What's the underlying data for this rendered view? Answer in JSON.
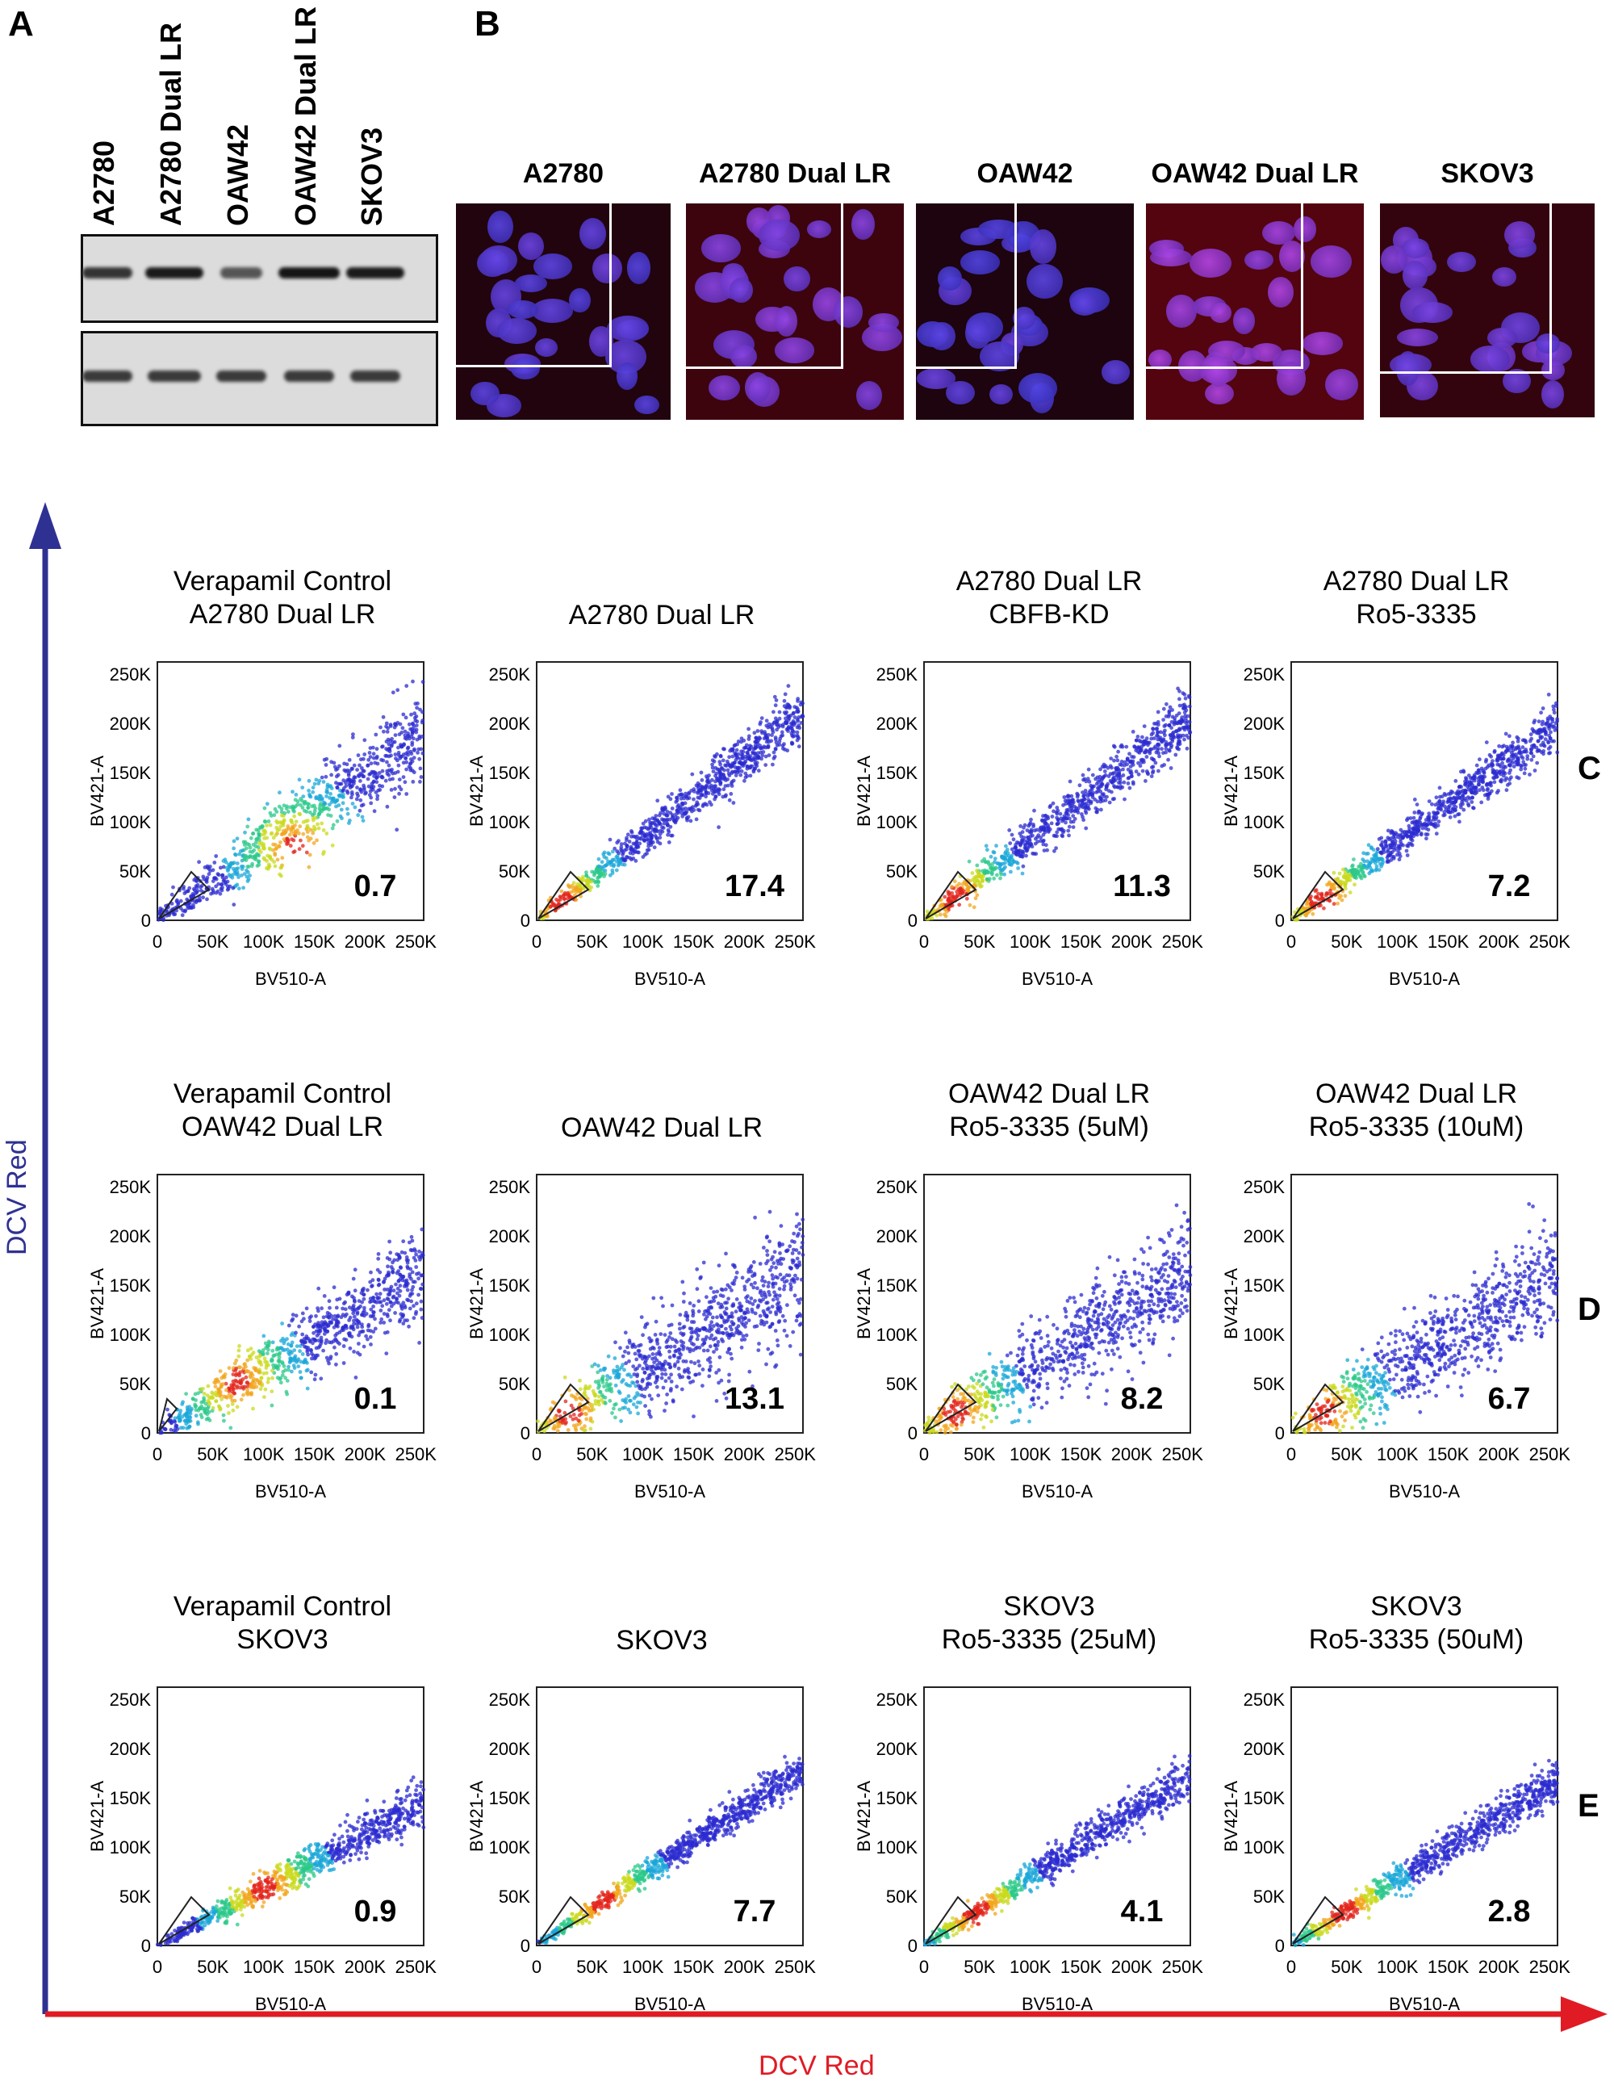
{
  "panel_a": {
    "letter": "A",
    "lanes": [
      "A2780",
      "A2780 Dual LR",
      "OAW42",
      "OAW42 Dual LR",
      "SKOV3"
    ]
  },
  "panel_b": {
    "letter": "B",
    "images": [
      "A2780",
      "A2780 Dual LR",
      "OAW42",
      "OAW42 Dual LR",
      "SKOV3"
    ]
  },
  "axes": {
    "y_label": "DCV Red",
    "x_label": "DCV Red",
    "y_color": "#2e3192",
    "x_color": "#e01b24"
  },
  "rows": [
    {
      "letter": "C",
      "plots": [
        {
          "title": [
            "Verapamil Control",
            "A2780 Dual LR"
          ],
          "value": "0.7"
        },
        {
          "title": [
            "A2780 Dual LR"
          ],
          "value": "17.4"
        },
        {
          "title": [
            "A2780 Dual LR",
            "CBFB-KD"
          ],
          "value": "11.3"
        },
        {
          "title": [
            "A2780 Dual LR",
            "Ro5-3335"
          ],
          "value": "7.2"
        }
      ]
    },
    {
      "letter": "D",
      "plots": [
        {
          "title": [
            "Verapamil Control",
            "OAW42 Dual LR"
          ],
          "value": "0.1"
        },
        {
          "title": [
            "OAW42 Dual LR"
          ],
          "value": "13.1"
        },
        {
          "title": [
            "OAW42 Dual LR",
            "Ro5-3335 (5uM)"
          ],
          "value": "8.2"
        },
        {
          "title": [
            "OAW42 Dual LR",
            "Ro5-3335 (10uM)"
          ],
          "value": "6.7"
        }
      ]
    },
    {
      "letter": "E",
      "plots": [
        {
          "title": [
            "Verapamil Control",
            "SKOV3"
          ],
          "value": "0.9"
        },
        {
          "title": [
            "SKOV3"
          ],
          "value": "7.7"
        },
        {
          "title": [
            "SKOV3",
            "Ro5-3335 (25uM)"
          ],
          "value": "4.1"
        },
        {
          "title": [
            "SKOV3",
            "Ro5-3335 (50uM)"
          ],
          "value": "2.8"
        }
      ]
    }
  ],
  "flow_axes": {
    "xlabel": "BV510-A",
    "ylabel": "BV421-A",
    "xticks": [
      "0",
      "50K",
      "100K",
      "150K",
      "200K",
      "250K"
    ],
    "yticks": [
      "0",
      "50K",
      "100K",
      "150K",
      "200K",
      "250K"
    ]
  },
  "chart_data": [
    {
      "type": "scatter",
      "title": "Verapamil Control A2780 Dual LR",
      "xlabel": "BV510-A",
      "ylabel": "BV421-A",
      "xlim": [
        0,
        262144
      ],
      "ylim": [
        0,
        262144
      ],
      "gate_percent": 0.7
    },
    {
      "type": "scatter",
      "title": "A2780 Dual LR",
      "xlabel": "BV510-A",
      "ylabel": "BV421-A",
      "xlim": [
        0,
        262144
      ],
      "ylim": [
        0,
        262144
      ],
      "gate_percent": 17.4
    },
    {
      "type": "scatter",
      "title": "A2780 Dual LR CBFB-KD",
      "xlabel": "BV510-A",
      "ylabel": "BV421-A",
      "xlim": [
        0,
        262144
      ],
      "ylim": [
        0,
        262144
      ],
      "gate_percent": 11.3
    },
    {
      "type": "scatter",
      "title": "A2780 Dual LR Ro5-3335",
      "xlabel": "BV510-A",
      "ylabel": "BV421-A",
      "xlim": [
        0,
        262144
      ],
      "ylim": [
        0,
        262144
      ],
      "gate_percent": 7.2
    },
    {
      "type": "scatter",
      "title": "Verapamil Control OAW42 Dual LR",
      "xlabel": "BV510-A",
      "ylabel": "BV421-A",
      "xlim": [
        0,
        262144
      ],
      "ylim": [
        0,
        262144
      ],
      "gate_percent": 0.1
    },
    {
      "type": "scatter",
      "title": "OAW42 Dual LR",
      "xlabel": "BV510-A",
      "ylabel": "BV421-A",
      "xlim": [
        0,
        262144
      ],
      "ylim": [
        0,
        262144
      ],
      "gate_percent": 13.1
    },
    {
      "type": "scatter",
      "title": "OAW42 Dual LR Ro5-3335 (5uM)",
      "xlabel": "BV510-A",
      "ylabel": "BV421-A",
      "xlim": [
        0,
        262144
      ],
      "ylim": [
        0,
        262144
      ],
      "gate_percent": 8.2
    },
    {
      "type": "scatter",
      "title": "OAW42 Dual LR Ro5-3335 (10uM)",
      "xlabel": "BV510-A",
      "ylabel": "BV421-A",
      "xlim": [
        0,
        262144
      ],
      "ylim": [
        0,
        262144
      ],
      "gate_percent": 6.7
    },
    {
      "type": "scatter",
      "title": "Verapamil Control SKOV3",
      "xlabel": "BV510-A",
      "ylabel": "BV421-A",
      "xlim": [
        0,
        262144
      ],
      "ylim": [
        0,
        262144
      ],
      "gate_percent": 0.9
    },
    {
      "type": "scatter",
      "title": "SKOV3",
      "xlabel": "BV510-A",
      "ylabel": "BV421-A",
      "xlim": [
        0,
        262144
      ],
      "ylim": [
        0,
        262144
      ],
      "gate_percent": 7.7
    },
    {
      "type": "scatter",
      "title": "SKOV3 Ro5-3335 (25uM)",
      "xlabel": "BV510-A",
      "ylabel": "BV421-A",
      "xlim": [
        0,
        262144
      ],
      "ylim": [
        0,
        262144
      ],
      "gate_percent": 4.1
    },
    {
      "type": "scatter",
      "title": "SKOV3 Ro5-3335 (50uM)",
      "xlabel": "BV510-A",
      "ylabel": "BV421-A",
      "xlim": [
        0,
        262144
      ],
      "ylim": [
        0,
        262144
      ],
      "gate_percent": 2.8
    }
  ]
}
